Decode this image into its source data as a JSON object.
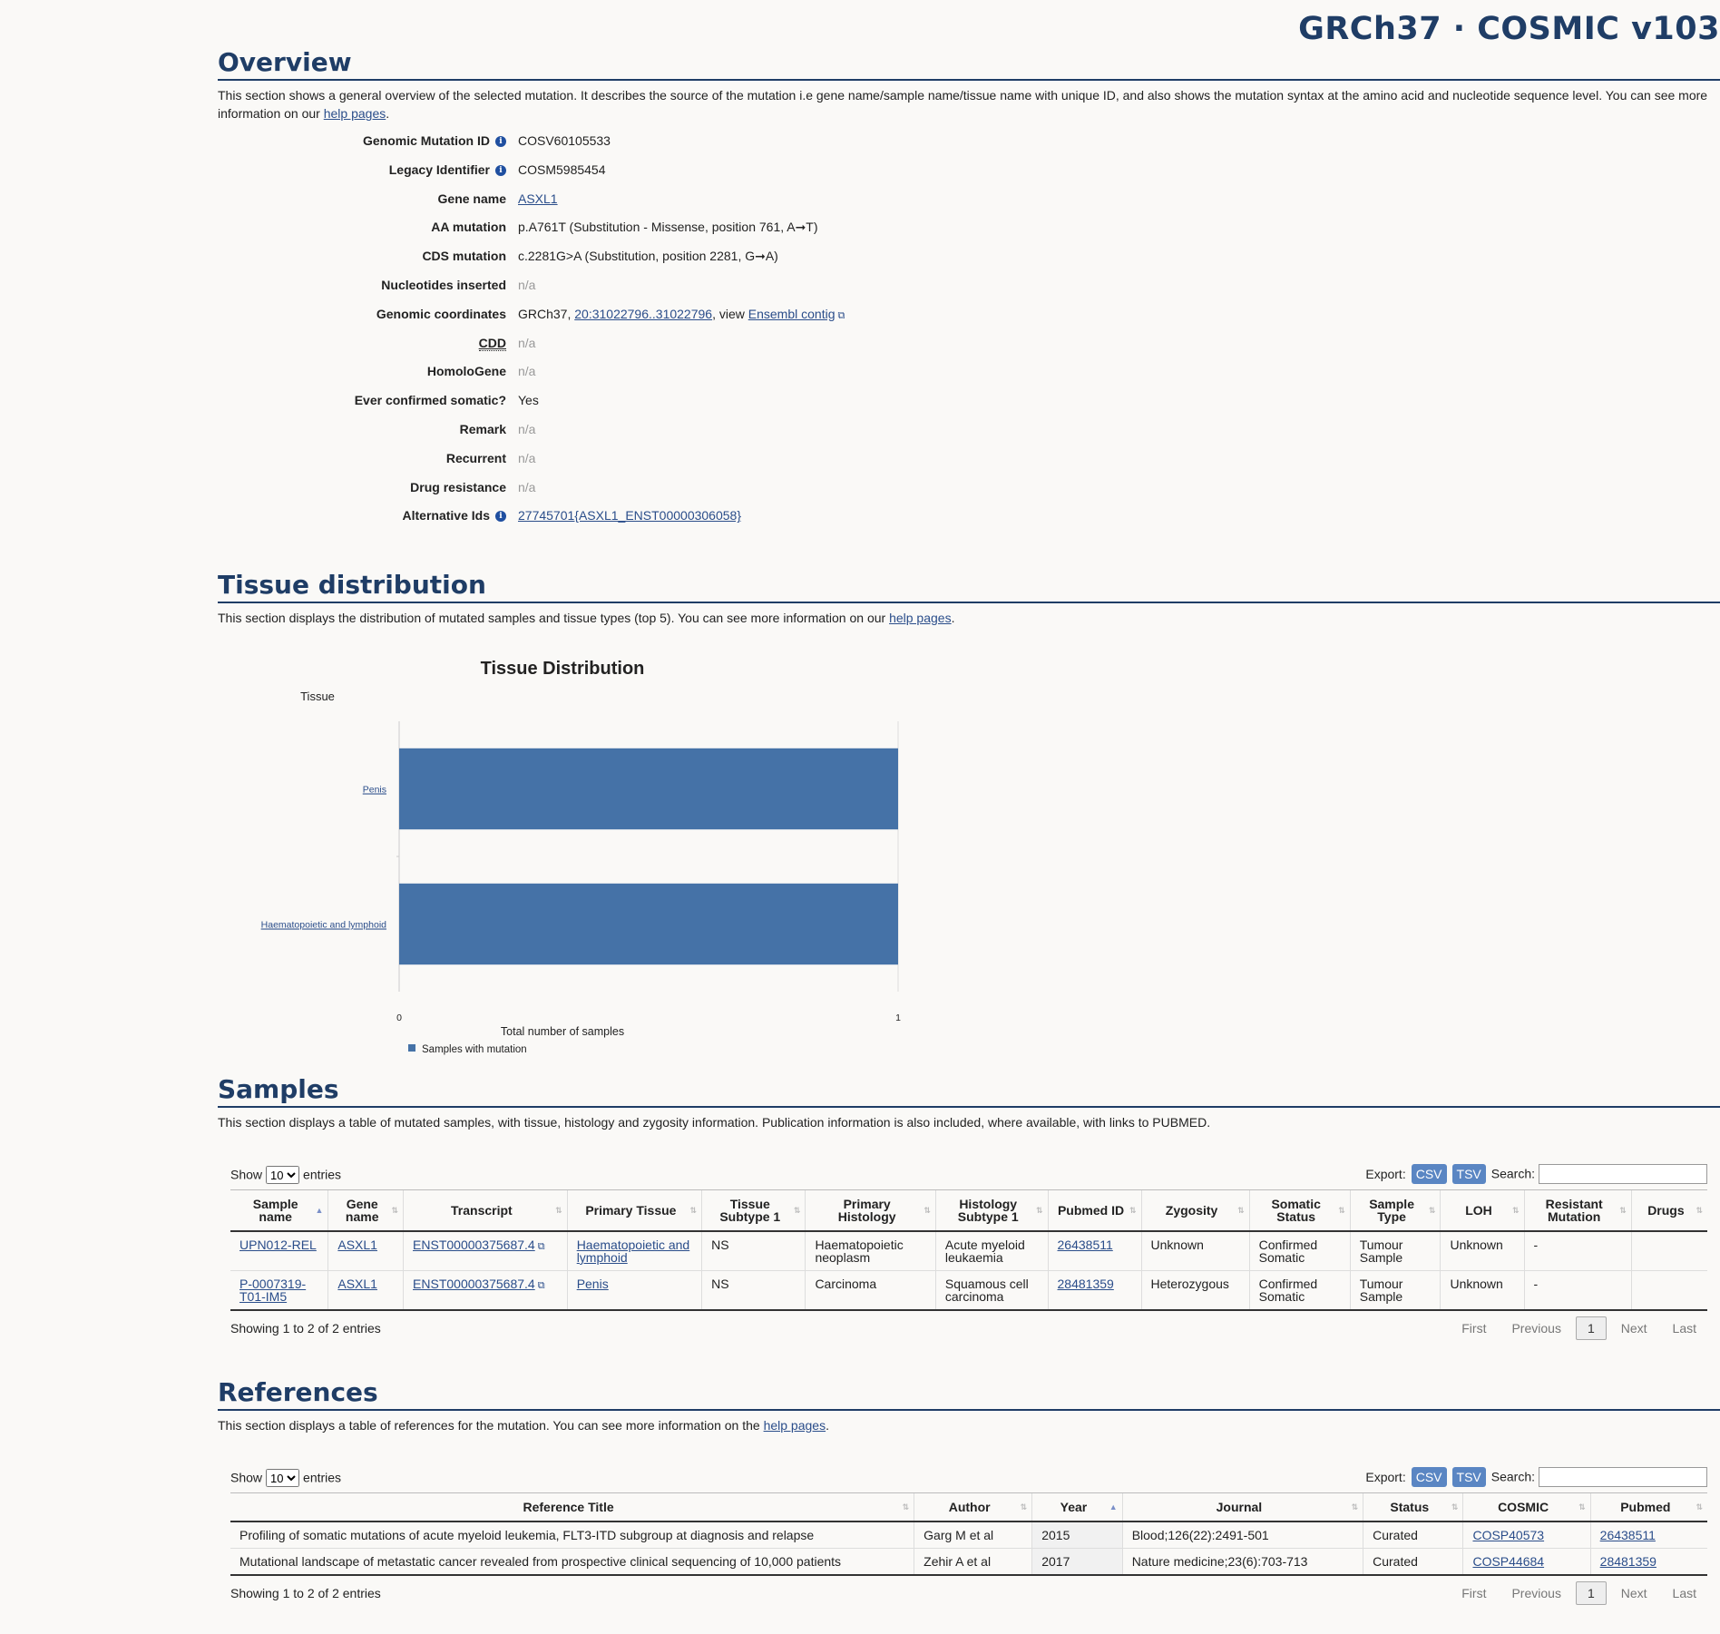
{
  "header": {
    "brand": "GRCh37 · COSMIC v103"
  },
  "overview": {
    "title": "Overview",
    "intro_before": "This section shows a general overview of the selected mutation. It describes the source of the mutation i.e gene name/sample name/tissue name with unique ID, and also shows the mutation syntax at the amino acid and nucleotide sequence level. You can see more information on our ",
    "intro_link": "help pages",
    "intro_after": ".",
    "fields": {
      "genomic_mutation_id": {
        "label": "Genomic Mutation ID",
        "value": "COSV60105533"
      },
      "legacy_identifier": {
        "label": "Legacy Identifier",
        "value": "COSM5985454"
      },
      "gene_name": {
        "label": "Gene name",
        "value": "ASXL1"
      },
      "aa_mutation": {
        "label": "AA mutation",
        "value": "p.A761T (Substitution - Missense, position 761, A➞T)"
      },
      "cds_mutation": {
        "label": "CDS mutation",
        "value": "c.2281G>A (Substitution, position 2281, G➞A)"
      },
      "nucleotides_inserted": {
        "label": "Nucleotides inserted",
        "value": "n/a"
      },
      "genomic_coordinates": {
        "label": "Genomic coordinates",
        "prefix": "GRCh37, ",
        "coord_link": "20:31022796..31022796",
        "mid": ", view ",
        "contig_link": "Ensembl contig"
      },
      "cdd": {
        "label": "CDD",
        "value": "n/a"
      },
      "homologene": {
        "label": "HomoloGene",
        "value": "n/a"
      },
      "ever_confirmed_somatic": {
        "label": "Ever confirmed somatic?",
        "value": "Yes"
      },
      "remark": {
        "label": "Remark",
        "value": "n/a"
      },
      "recurrent": {
        "label": "Recurrent",
        "value": "n/a"
      },
      "drug_resistance": {
        "label": "Drug resistance",
        "value": "n/a"
      },
      "alternative_ids": {
        "label": "Alternative Ids",
        "value": "27745701{ASXL1_ENST00000306058}"
      }
    }
  },
  "tissue": {
    "title": "Tissue distribution",
    "intro_before": "This section displays the distribution of mutated samples and tissue types (top 5). You can see more information on our ",
    "intro_link": "help pages",
    "intro_after": "."
  },
  "chart_data": {
    "type": "bar",
    "orientation": "horizontal",
    "title": "Tissue Distribution",
    "ylabel": "Tissue",
    "xlabel": "Total number of samples",
    "categories": [
      "Penis",
      "Haematopoietic and lymphoid"
    ],
    "series": [
      {
        "name": "Samples with mutation",
        "values": [
          1,
          1
        ]
      }
    ],
    "xlim": [
      0,
      1
    ],
    "xticks": [
      "0",
      "1"
    ],
    "legend": "bottom-left",
    "color": "#4572a7"
  },
  "samples": {
    "title": "Samples",
    "intro": "This section displays a table of mutated samples, with tissue, histology and zygosity information. Publication information is also included, where available, with links to PUBMED.",
    "show": "Show",
    "entries": "entries",
    "length_options": [
      "10"
    ],
    "export_label": "Export:",
    "csv": "CSV",
    "tsv": "TSV",
    "search_label": "Search:",
    "columns": [
      "Sample name",
      "Gene name",
      "Transcript",
      "Primary Tissue",
      "Tissue Subtype 1",
      "Primary Histology",
      "Histology Subtype 1",
      "Pubmed ID",
      "Zygosity",
      "Somatic Status",
      "Sample Type",
      "LOH",
      "Resistant Mutation",
      "Drugs"
    ],
    "rows": [
      [
        "UPN012-REL",
        "ASXL1",
        "ENST00000375687.4",
        "Haematopoietic and lymphoid",
        "NS",
        "Haematopoietic neoplasm",
        "Acute myeloid leukaemia",
        "26438511",
        "Unknown",
        "Confirmed Somatic",
        "Tumour Sample",
        "Unknown",
        "-",
        ""
      ],
      [
        "P-0007319-T01-IM5",
        "ASXL1",
        "ENST00000375687.4",
        "Penis",
        "NS",
        "Carcinoma",
        "Squamous cell carcinoma",
        "28481359",
        "Heterozygous",
        "Confirmed Somatic",
        "Tumour Sample",
        "Unknown",
        "-",
        ""
      ]
    ],
    "info": "Showing 1 to 2 of 2 entries",
    "pager": {
      "first": "First",
      "previous": "Previous",
      "page": "1",
      "next": "Next",
      "last": "Last"
    }
  },
  "references": {
    "title": "References",
    "intro_before": "This section displays a table of references for the mutation. You can see more information on the ",
    "intro_link": "help pages",
    "intro_after": ".",
    "show": "Show",
    "entries": "entries",
    "length_options": [
      "10"
    ],
    "export_label": "Export:",
    "csv": "CSV",
    "tsv": "TSV",
    "search_label": "Search:",
    "columns": [
      "Reference Title",
      "Author",
      "Year",
      "Journal",
      "Status",
      "COSMIC",
      "Pubmed"
    ],
    "rows": [
      [
        "Profiling of somatic mutations of acute myeloid leukemia, FLT3-ITD subgroup at diagnosis and relapse",
        "Garg M et al",
        "2015",
        "Blood;126(22):2491-501",
        "Curated",
        "COSP40573",
        "26438511"
      ],
      [
        "Mutational landscape of metastatic cancer revealed from prospective clinical sequencing of 10,000 patients",
        "Zehir A et al",
        "2017",
        "Nature medicine;23(6):703-713",
        "Curated",
        "COSP44684",
        "28481359"
      ]
    ],
    "info": "Showing 1 to 2 of 2 entries",
    "pager": {
      "first": "First",
      "previous": "Previous",
      "page": "1",
      "next": "Next",
      "last": "Last"
    }
  }
}
